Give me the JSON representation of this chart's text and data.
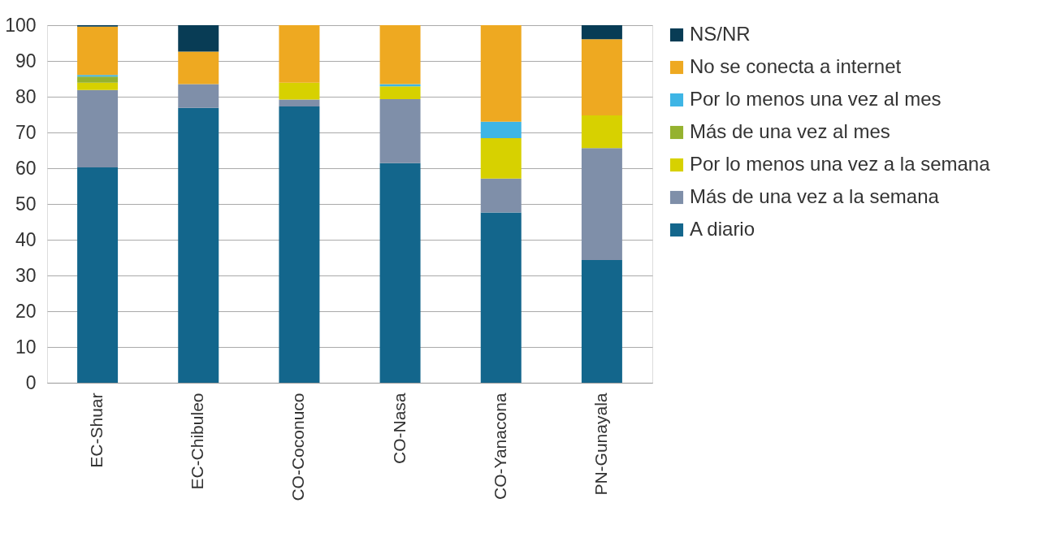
{
  "chart_data": {
    "type": "bar",
    "stacked": true,
    "categories": [
      "EC-Shuar",
      "EC-Chibuleo",
      "CO-Coconuco",
      "CO-Nasa",
      "CO-Yanacona",
      "PN-Gunayala"
    ],
    "series": [
      {
        "name": "A diario",
        "color": "#13668c",
        "values": [
          60.2,
          76.9,
          77.3,
          61.4,
          47.6,
          34.3
        ]
      },
      {
        "name": "Más de una vez a la semana",
        "color": "#7f8fa9",
        "values": [
          21.7,
          6.6,
          1.9,
          17.9,
          9.5,
          31.3
        ]
      },
      {
        "name": "Por lo menos una vez a la semana",
        "color": "#d7d100",
        "values": [
          2.0,
          0,
          4.7,
          3.6,
          11.3,
          9.2
        ]
      },
      {
        "name": "Más de una vez al mes",
        "color": "#95b22f",
        "values": [
          1.7,
          0,
          0,
          0,
          0,
          0
        ]
      },
      {
        "name": "Por lo menos una vez al mes",
        "color": "#3eb5e5",
        "values": [
          0.5,
          0,
          0,
          0.6,
          4.6,
          0
        ]
      },
      {
        "name": "No se conecta a internet",
        "color": "#eea921",
        "values": [
          13.5,
          9.1,
          16.1,
          16.5,
          27.0,
          21.3
        ]
      },
      {
        "name": "NS/NR",
        "color": "#083c55",
        "values": [
          0.4,
          7.4,
          0,
          0,
          0,
          3.9
        ]
      }
    ],
    "ylim": [
      0,
      100
    ],
    "yticks": [
      0,
      10,
      20,
      30,
      40,
      50,
      60,
      70,
      80,
      90,
      100
    ],
    "grid": "y",
    "legend": "right"
  }
}
